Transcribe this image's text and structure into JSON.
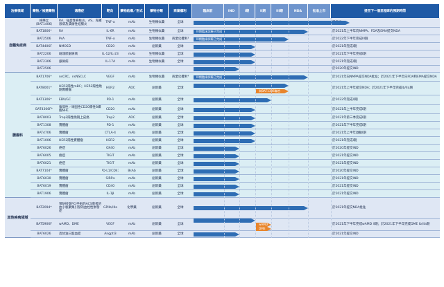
{
  "headers": [
    "治療領域",
    "藥物／候選藥物",
    "適應症",
    "靶向",
    "藥物結構／形式",
    "藥物分類",
    "商業權利",
    "臨床前",
    "IND",
    "I期",
    "II期",
    "III期",
    "NDA",
    "批准上市",
    "提至下一個里程碑的預期時間"
  ],
  "sections": [
    {
      "label": "自體免疫病",
      "start": 0,
      "count": 7,
      "bg": "#dfe7f4"
    },
    {
      "label": "腫瘤科",
      "start": 7,
      "count": 19,
      "bg": "#dbeef4"
    },
    {
      "label": "其他疾病領域",
      "start": 26,
      "count": 4,
      "bg": "#dfe7f4"
    }
  ],
  "colors": {
    "header": "#1f5aa6",
    "bar": "#2e6db4",
    "orange": "#e8852b"
  },
  "rows": [
    {
      "drug": "格樂立（BAT1406）",
      "ind": "RA、強直性脊柱炎、AS、克羅恩病及潰瘍性結腸炎",
      "target": "TNF-α",
      "form": "mAb",
      "cls": "生物類似藥",
      "rights": "全球",
      "bar_end": "approved",
      "bar_label": "",
      "milestone": "已批准",
      "h": 14
    },
    {
      "drug": "BAT1806*",
      "ind": "RA",
      "target": "IL-6R",
      "form": "mAb",
      "cls": "生物類似藥",
      "rights": "全球",
      "bar_end": "nda",
      "bar_label": "III期臨床試驗已完成",
      "milestone": "於2021年上半年向NMPA、FDA及EMA提交NDA",
      "h": 11
    },
    {
      "drug": "BAT2506",
      "ind": "PsA",
      "target": "TNF-α",
      "form": "mAb",
      "cls": "生物類似藥",
      "rights": "商業化權利³",
      "bar_end": "p3",
      "bar_label": "III期臨床試驗已完成",
      "milestone": "於2022年下半年完成III期",
      "h": 11
    },
    {
      "drug": "BAT4406F",
      "ind": "NMOSD",
      "target": "CD20",
      "form": "mAb",
      "cls": "創新藥",
      "rights": "全球",
      "bar_end": "p1",
      "bar_label": "",
      "milestone": "於2021年完成I期",
      "h": 11
    },
    {
      "drug": "BAT2206",
      "ind": "斑塊狀銀屑病",
      "target": "IL-12/IL-23",
      "form": "mAb",
      "cls": "生物類似藥",
      "rights": "全球",
      "bar_end": "p1",
      "bar_label": "",
      "milestone": "於2021年下半年完成I期",
      "h": 11
    },
    {
      "drug": "BAT2306",
      "ind": "銀屑病",
      "target": "IL-17A",
      "form": "mAb",
      "cls": "生物類似藥",
      "rights": "全球",
      "bar_end": "p1",
      "bar_label": "",
      "milestone": "於2021年完成I期",
      "h": 11
    },
    {
      "drug": "BAT2506",
      "ind": "",
      "target": "",
      "form": "",
      "cls": "",
      "rights": "",
      "bar_end": "ind",
      "bar_label": "",
      "milestone": "於2020年提交IND",
      "h": 10
    },
    {
      "drug": "BAT1706*",
      "ind": "nsCRC、nsNSCLC",
      "target": "VEGF",
      "form": "mAb",
      "cls": "生物類似藥",
      "rights": "商業化權利⁴",
      "bar_end": "nda",
      "bar_label": "III期臨床試驗已完成",
      "milestone": "於2021年向NMPA提交NDA批准；於2021年下半年向FDA和EMA提交NDA",
      "h": 13
    },
    {
      "drug": "BAT8001*",
      "ind": "HER2陽性mBC；HER2陽性晚期實體瘤",
      "target": "HER2",
      "form": "ADC",
      "cls": "創新藥",
      "rights": "全球",
      "bar_end": "p3",
      "bar_label": "",
      "bar2_end": "p3",
      "bar2_label": "與BAT1306聯合",
      "milestone": "於2021年上半年提交NDA；於2021年下半年完成Ib/IIa期",
      "h": 20
    },
    {
      "drug": "BAT1306*",
      "ind": "EBV/GC",
      "target": "PD-1",
      "form": "mAb",
      "cls": "創新藥",
      "rights": "全球",
      "bar_end": "p2",
      "bar_label": "",
      "milestone": "於2022年完成II期",
      "h": 14
    },
    {
      "drug": "BAT4306F*",
      "ind": "復發性／頑固性CD20陽性B細胞NHL",
      "target": "CD20",
      "form": "mAb",
      "cls": "創新藥",
      "rights": "全球",
      "bar_end": "p1",
      "bar_label": "",
      "milestone": "於2021年上半年完成I期",
      "h": 13
    },
    {
      "drug": "BAT8003",
      "ind": "Trop2陽性晚期上皮癌",
      "target": "Trop2",
      "form": "ADC",
      "cls": "創新藥",
      "rights": "全球",
      "bar_end": "p1",
      "bar_label": "",
      "milestone": "於2021年第三季完成I期",
      "h": 11
    },
    {
      "drug": "BAT1308",
      "ind": "實體瘤",
      "target": "PD-1",
      "form": "mAb",
      "cls": "創新藥",
      "rights": "全球",
      "bar_end": "p1",
      "bar_label": "",
      "milestone": "於2021年下半年完成I期",
      "h": 11
    },
    {
      "drug": "BAT4706",
      "ind": "實體瘤",
      "target": "CTLA-4",
      "form": "mAb",
      "cls": "創新藥",
      "rights": "全球",
      "bar_end": "p1",
      "bar_label": "",
      "milestone": "於2021年上半年啟動I期",
      "h": 11
    },
    {
      "drug": "BAT1006",
      "ind": "HER2陽性實體瘤",
      "target": "HER2",
      "form": "mAb",
      "cls": "創新藥",
      "rights": "全球",
      "bar_end": "p1",
      "bar_label": "",
      "milestone": "於2021年完成I期",
      "h": 11
    },
    {
      "drug": "BAT6026",
      "ind": "癌症",
      "target": "OX40",
      "form": "mAb",
      "cls": "創新藥",
      "rights": "全球",
      "bar_end": "ind",
      "bar_label": "",
      "milestone": "於2020年提交IND",
      "h": 11
    },
    {
      "drug": "BAT6005",
      "ind": "癌症",
      "target": "TIGIT",
      "form": "mAb",
      "cls": "創新藥",
      "rights": "全球",
      "bar_end": "ind",
      "bar_label": "",
      "milestone": "於2021年提交IND",
      "h": 11
    },
    {
      "drug": "BAT6021",
      "ind": "癌症",
      "target": "TIGIT",
      "form": "mAb",
      "cls": "創新藥",
      "rights": "全球",
      "bar_end": "ind",
      "bar_label": "",
      "milestone": "於2021年提交IND",
      "h": 11
    },
    {
      "drug": "BAT7104*",
      "ind": "實體瘤",
      "target": "PD-L1/CD47",
      "form": "BsAb",
      "cls": "創新藥",
      "rights": "全球",
      "bar_end": "ind",
      "bar_label": "",
      "milestone": "於2020年提交IND",
      "h": 11
    },
    {
      "drug": "BAT6030",
      "ind": "實體瘤",
      "target": "SIRPα",
      "form": "mAb",
      "cls": "創新藥",
      "rights": "全球",
      "bar_end": "ind",
      "bar_label": "",
      "milestone": "於2021年提交IND",
      "h": 11
    },
    {
      "drug": "BAT6019",
      "ind": "實體瘤",
      "target": "CD40",
      "form": "mAb",
      "cls": "創新藥",
      "rights": "全球",
      "bar_end": "ind",
      "bar_label": "",
      "milestone": "於2021年提交IND",
      "h": 11
    },
    {
      "drug": "BAT1906",
      "ind": "實體瘤",
      "target": "IL-1β",
      "form": "mAb",
      "cls": "創新藥",
      "rights": "全球",
      "bar_end": "ind",
      "bar_label": "",
      "milestone": "於2021年提交IND",
      "h": 11
    },
    {
      "drug": "",
      "ind": "",
      "target": "",
      "form": "",
      "cls": "",
      "rights": "",
      "bar_end": "",
      "bar_label": "",
      "milestone": "",
      "h": 0
    },
    {
      "drug": "",
      "ind": "",
      "target": "",
      "form": "",
      "cls": "",
      "rights": "",
      "bar_end": "",
      "bar_label": "",
      "milestone": "",
      "h": 0
    },
    {
      "drug": "",
      "ind": "",
      "target": "",
      "form": "",
      "cls": "",
      "rights": "",
      "bar_end": "",
      "bar_label": "",
      "milestone": "",
      "h": 0
    },
    {
      "drug": "",
      "ind": "",
      "target": "",
      "form": "",
      "cls": "",
      "rights": "",
      "bar_end": "",
      "bar_label": "",
      "milestone": "",
      "h": 0
    },
    {
      "drug": "BAT2094*",
      "ind": "預防接受PCI手術的ACS患者的血小板聚集引發的血栓性併發症",
      "target": "GPIIb/IIIa",
      "form": "化學藥",
      "cls": "創新藥",
      "rights": "全球",
      "bar_end": "nda",
      "bar_label": "",
      "milestone": "於2021年提交NDA批准",
      "h": 30
    },
    {
      "drug": "BAT5906F",
      "ind": "wAMD、DME",
      "target": "VEGF",
      "form": "mAb",
      "cls": "創新藥",
      "rights": "全球",
      "bar_end": "p1",
      "bar_label": "",
      "bar2_end": "p2",
      "bar2_label": "wAMD",
      "bar3_end": "p2",
      "bar3_label": "DME",
      "milestone": "於2021年下半年完成wAMD II期；於2021年下半年完成DME Ib/IIa期",
      "h": 18
    },
    {
      "drug": "BAT2506",
      "ind": "第三治療中",
      "target": "",
      "form": "",
      "cls": "",
      "rights": "",
      "bar_end": "",
      "bar_label": "",
      "milestone": "",
      "h": 0
    },
    {
      "drug": "BAT6026",
      "ind": "高甘油三酯血症",
      "target": "Angptl3",
      "form": "mAb",
      "cls": "創新藥",
      "rights": "全球",
      "bar_end": "ind",
      "bar_label": "",
      "milestone": "於2021年提交IND",
      "h": 10
    }
  ]
}
